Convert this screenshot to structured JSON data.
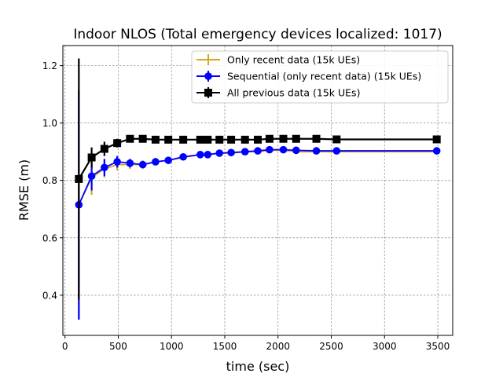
{
  "chart_data": {
    "type": "line",
    "title": "Indoor NLOS (Total emergency devices localized: 1017)",
    "xlabel": "time (sec)",
    "ylabel": "RMSE (m)",
    "xlim": [
      -20,
      3640
    ],
    "ylim": [
      0.26,
      1.27
    ],
    "xticks": [
      0,
      500,
      1000,
      1500,
      2000,
      2500,
      3000,
      3500
    ],
    "yticks": [
      0.4,
      0.6,
      0.8,
      1.0,
      1.2
    ],
    "xtick_labels": [
      "0",
      "500",
      "1000",
      "1500",
      "2000",
      "2500",
      "3000",
      "3500"
    ],
    "ytick_labels": [
      "0.4",
      "0.6",
      "0.8",
      "1.0",
      "1.2"
    ],
    "grid": true,
    "legend_position": "top-right",
    "series": [
      {
        "name": "Only recent data (15k UEs)",
        "color": "#daa520",
        "marker": "plus",
        "x": [
          130,
          250,
          370,
          490,
          610,
          730,
          850,
          970,
          1110,
          1270,
          1340,
          1450,
          1560,
          1690,
          1810,
          1920,
          2050,
          2170,
          2360,
          2550,
          3490
        ],
        "y": [
          0.715,
          0.81,
          0.84,
          0.855,
          0.855,
          0.855,
          0.865,
          0.87,
          0.88,
          0.89,
          0.89,
          0.895,
          0.895,
          0.9,
          0.9,
          0.905,
          0.905,
          0.9,
          0.9,
          0.9,
          0.9
        ],
        "err": [
          0.4,
          0.06,
          0.03,
          0.02,
          0.015,
          0.015,
          0.012,
          0.01,
          0.01,
          0.008,
          0.008,
          0.008,
          0.008,
          0.007,
          0.007,
          0.007,
          0.006,
          0.006,
          0.006,
          0.006,
          0.005
        ]
      },
      {
        "name": "Sequential (only recent data) (15k UEs)",
        "color": "#0000ff",
        "marker": "circle",
        "x": [
          130,
          250,
          370,
          490,
          610,
          730,
          850,
          970,
          1110,
          1270,
          1340,
          1450,
          1560,
          1690,
          1810,
          1920,
          2050,
          2170,
          2360,
          2550,
          3490
        ],
        "y": [
          0.715,
          0.815,
          0.845,
          0.865,
          0.86,
          0.855,
          0.865,
          0.87,
          0.882,
          0.89,
          0.89,
          0.895,
          0.897,
          0.9,
          0.903,
          0.907,
          0.907,
          0.905,
          0.903,
          0.903,
          0.903
        ],
        "err": [
          0.4,
          0.05,
          0.03,
          0.02,
          0.015,
          0.012,
          0.01,
          0.01,
          0.01,
          0.008,
          0.008,
          0.008,
          0.007,
          0.007,
          0.007,
          0.006,
          0.006,
          0.006,
          0.006,
          0.005,
          0.005
        ]
      },
      {
        "name": "All previous data (15k UEs)",
        "color": "#000000",
        "marker": "square",
        "x": [
          130,
          250,
          370,
          490,
          610,
          730,
          850,
          970,
          1110,
          1270,
          1340,
          1450,
          1560,
          1690,
          1810,
          1920,
          2050,
          2170,
          2360,
          2550,
          3490
        ],
        "y": [
          0.805,
          0.88,
          0.91,
          0.93,
          0.945,
          0.945,
          0.942,
          0.942,
          0.942,
          0.942,
          0.942,
          0.942,
          0.942,
          0.942,
          0.942,
          0.945,
          0.945,
          0.945,
          0.945,
          0.943,
          0.943
        ],
        "err": [
          0.42,
          0.035,
          0.025,
          0.015,
          0.01,
          0.008,
          0.007,
          0.006,
          0.006,
          0.005,
          0.005,
          0.005,
          0.005,
          0.005,
          0.005,
          0.005,
          0.005,
          0.004,
          0.004,
          0.004,
          0.004
        ]
      }
    ]
  }
}
